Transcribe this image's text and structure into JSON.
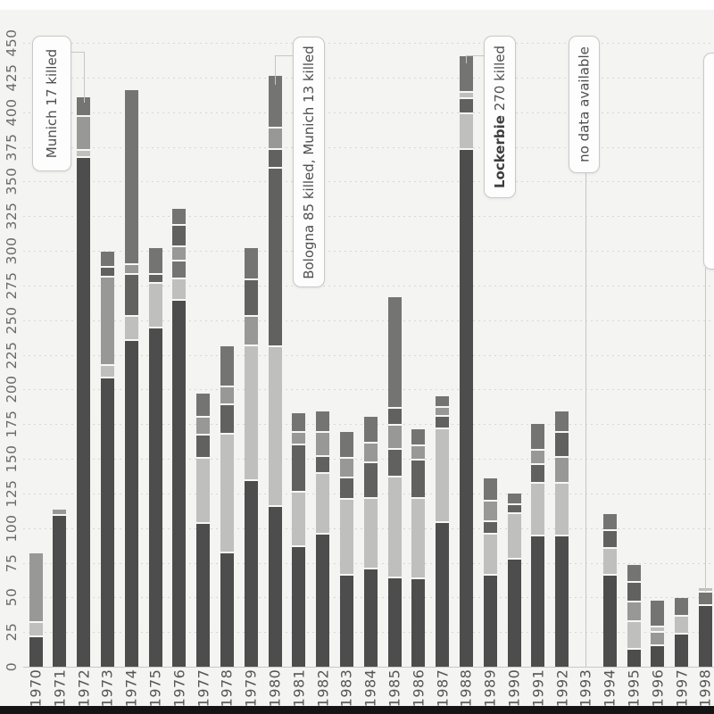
{
  "chart_data": {
    "type": "bar",
    "stacked": true,
    "orientation": "vertical",
    "text_rotation_deg": -90,
    "ylim": [
      0,
      450
    ],
    "ytick_step": 25,
    "grid": "dotted-horizontal",
    "legend": "none",
    "background_color": "#f4f4f3",
    "palette": {
      "d1": "#4d4d4d",
      "d2": "#616160",
      "m": "#747473",
      "m2": "#989897",
      "l": "#bfbfbe"
    },
    "y_ticks": [
      "0",
      "25",
      "50",
      "75",
      "100",
      "125",
      "150",
      "175",
      "200",
      "225",
      "250",
      "275",
      "300",
      "325",
      "350",
      "375",
      "400",
      "425",
      "450"
    ],
    "x_labels": [
      "1970",
      "1971",
      "1972",
      "1973",
      "1974",
      "1975",
      "1976",
      "1977",
      "1978",
      "1979",
      "1980",
      "1981",
      "1982",
      "1983",
      "1984",
      "1985",
      "1986",
      "1987",
      "1988",
      "1989",
      "1990",
      "1991",
      "1992",
      "1993",
      "1994",
      "1995",
      "1996",
      "1997",
      "1998"
    ],
    "no_data_years": [
      "1993"
    ],
    "bars": [
      {
        "year": "1970",
        "total": 79,
        "segments": [
          [
            "d1",
            21
          ],
          [
            "l",
            9
          ],
          [
            "m2",
            49
          ]
        ]
      },
      {
        "year": "1971",
        "total": 112,
        "segments": [
          [
            "d1",
            109
          ],
          [
            "m2",
            3
          ]
        ]
      },
      {
        "year": "1972",
        "total": 407,
        "segments": [
          [
            "d1",
            367
          ],
          [
            "l",
            4
          ],
          [
            "m2",
            23
          ],
          [
            "m",
            13
          ]
        ]
      },
      {
        "year": "1973",
        "total": 294,
        "segments": [
          [
            "d1",
            208
          ],
          [
            "l",
            8
          ],
          [
            "m2",
            62
          ],
          [
            "d2",
            6
          ],
          [
            "m",
            10
          ]
        ]
      },
      {
        "year": "1974",
        "total": 411,
        "segments": [
          [
            "d1",
            235
          ],
          [
            "l",
            16
          ],
          [
            "d2",
            29
          ],
          [
            "m2",
            6
          ],
          [
            "m",
            125
          ]
        ]
      },
      {
        "year": "1975",
        "total": 298,
        "segments": [
          [
            "d1",
            244
          ],
          [
            "l",
            31
          ],
          [
            "d2",
            5
          ],
          [
            "m",
            18
          ]
        ]
      },
      {
        "year": "1976",
        "total": 324,
        "segments": [
          [
            "d1",
            264
          ],
          [
            "l",
            14
          ],
          [
            "m",
            12
          ],
          [
            "m2",
            9
          ],
          [
            "d2",
            14
          ],
          [
            "m",
            11
          ]
        ]
      },
      {
        "year": "1977",
        "total": 192,
        "segments": [
          [
            "d1",
            103
          ],
          [
            "l",
            46
          ],
          [
            "d2",
            15
          ],
          [
            "m2",
            12
          ],
          [
            "m",
            16
          ]
        ]
      },
      {
        "year": "1978",
        "total": 226,
        "segments": [
          [
            "d1",
            82
          ],
          [
            "l",
            84
          ],
          [
            "d2",
            20
          ],
          [
            "m2",
            12
          ],
          [
            "m",
            28
          ]
        ]
      },
      {
        "year": "1979",
        "total": 297,
        "segments": [
          [
            "d1",
            134
          ],
          [
            "l",
            96
          ],
          [
            "m2",
            20
          ],
          [
            "d2",
            25
          ],
          [
            "m",
            22
          ]
        ]
      },
      {
        "year": "1980",
        "total": 420,
        "segments": [
          [
            "d1",
            115
          ],
          [
            "l",
            114
          ],
          [
            "d2",
            128
          ],
          [
            "d2",
            12
          ],
          [
            "m2",
            14
          ],
          [
            "m",
            37
          ]
        ]
      },
      {
        "year": "1981",
        "total": 178,
        "segments": [
          [
            "d1",
            86
          ],
          [
            "l",
            38
          ],
          [
            "d2",
            33
          ],
          [
            "m2",
            8
          ],
          [
            "m",
            13
          ]
        ]
      },
      {
        "year": "1982",
        "total": 179,
        "segments": [
          [
            "d1",
            95
          ],
          [
            "l",
            43
          ],
          [
            "d2",
            11
          ],
          [
            "m2",
            16
          ],
          [
            "m",
            14
          ]
        ]
      },
      {
        "year": "1983",
        "total": 164,
        "segments": [
          [
            "d1",
            66
          ],
          [
            "l",
            53
          ],
          [
            "d2",
            14
          ],
          [
            "m2",
            13
          ],
          [
            "m",
            18
          ]
        ]
      },
      {
        "year": "1984",
        "total": 175,
        "segments": [
          [
            "d1",
            70
          ],
          [
            "l",
            50
          ],
          [
            "d2",
            24
          ],
          [
            "m2",
            13
          ],
          [
            "m",
            18
          ]
        ]
      },
      {
        "year": "1985",
        "total": 260,
        "segments": [
          [
            "d1",
            64
          ],
          [
            "l",
            71
          ],
          [
            "d2",
            19
          ],
          [
            "m2",
            16
          ],
          [
            "d2",
            11
          ],
          [
            "m",
            79
          ]
        ]
      },
      {
        "year": "1986",
        "total": 166,
        "segments": [
          [
            "d1",
            63
          ],
          [
            "l",
            57
          ],
          [
            "d2",
            26
          ],
          [
            "m2",
            9
          ],
          [
            "m",
            11
          ]
        ]
      },
      {
        "year": "1987",
        "total": 190,
        "segments": [
          [
            "d1",
            104
          ],
          [
            "l",
            66
          ],
          [
            "d2",
            8
          ],
          [
            "m2",
            5
          ],
          [
            "m",
            7
          ]
        ]
      },
      {
        "year": "1988",
        "total": 435,
        "segments": [
          [
            "d1",
            373
          ],
          [
            "l",
            24
          ],
          [
            "d2",
            10
          ],
          [
            "l",
            3
          ],
          [
            "m",
            25
          ]
        ]
      },
      {
        "year": "1989",
        "total": 131,
        "segments": [
          [
            "d1",
            66
          ],
          [
            "l",
            28
          ],
          [
            "d2",
            8
          ],
          [
            "m2",
            13
          ],
          [
            "m",
            16
          ]
        ]
      },
      {
        "year": "1990",
        "total": 121,
        "segments": [
          [
            "d1",
            77
          ],
          [
            "l",
            32
          ],
          [
            "d2",
            5
          ],
          [
            "m",
            7
          ]
        ]
      },
      {
        "year": "1991",
        "total": 170,
        "segments": [
          [
            "d1",
            94
          ],
          [
            "l",
            37
          ],
          [
            "d2",
            12
          ],
          [
            "m2",
            9
          ],
          [
            "m",
            18
          ]
        ]
      },
      {
        "year": "1992",
        "total": 179,
        "segments": [
          [
            "d1",
            94
          ],
          [
            "l",
            37
          ],
          [
            "m2",
            17
          ],
          [
            "d2",
            17
          ],
          [
            "m",
            14
          ]
        ]
      },
      {
        "year": "1993",
        "total": 0,
        "segments": []
      },
      {
        "year": "1994",
        "total": 106,
        "segments": [
          [
            "d1",
            66
          ],
          [
            "l",
            18
          ],
          [
            "d2",
            11
          ],
          [
            "m",
            11
          ]
        ]
      },
      {
        "year": "1995",
        "total": 68,
        "segments": [
          [
            "d1",
            12
          ],
          [
            "l",
            19
          ],
          [
            "m2",
            13
          ],
          [
            "d2",
            13
          ],
          [
            "m",
            11
          ]
        ]
      },
      {
        "year": "1996",
        "total": 44,
        "segments": [
          [
            "d1",
            15
          ],
          [
            "m2",
            8
          ],
          [
            "l",
            3
          ],
          [
            "m",
            18
          ]
        ]
      },
      {
        "year": "1997",
        "total": 47,
        "segments": [
          [
            "d1",
            23
          ],
          [
            "l",
            12
          ],
          [
            "m",
            12
          ]
        ]
      },
      {
        "year": "1998",
        "total": 54,
        "segments": [
          [
            "d1",
            44
          ],
          [
            "m",
            8
          ],
          [
            "l",
            2
          ]
        ]
      }
    ],
    "annotations": [
      {
        "id": "munich-1972",
        "year": "1972",
        "parts": [
          [
            "Munich 17 killed",
            false
          ]
        ]
      },
      {
        "id": "bologna-1980",
        "year": "1980",
        "parts": [
          [
            "Bologna 85 killed, Munich 13 killed",
            false
          ]
        ]
      },
      {
        "id": "lockerbie-1988",
        "year": "1988",
        "parts": [
          [
            "Lockerbie",
            true
          ],
          [
            " 270 killed",
            false
          ]
        ]
      },
      {
        "id": "no-data-1993",
        "year": "1993",
        "parts": [
          [
            "no data available",
            false
          ]
        ]
      },
      {
        "id": "cutoff-right-1998",
        "year": "1998",
        "parts": [
          [
            "",
            false
          ]
        ]
      }
    ]
  }
}
